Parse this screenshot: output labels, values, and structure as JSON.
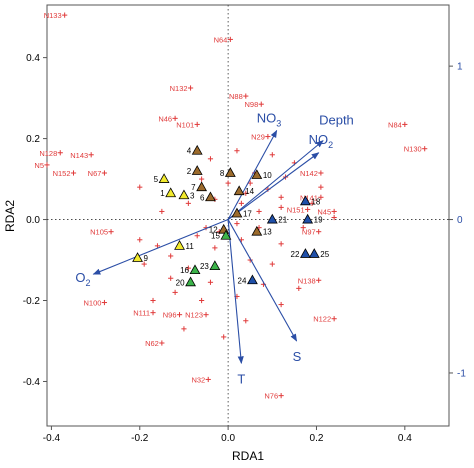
{
  "chart_data": {
    "type": "scatter",
    "xlabel": "RDA1",
    "ylabel": "RDA2",
    "xlim": [
      -0.41,
      0.5
    ],
    "ylim": [
      -0.51,
      0.53
    ],
    "x_ticks": [
      "-0.4",
      "-0.2",
      "0.0",
      "0.2",
      "0.4"
    ],
    "x_tick_values": [
      -0.4,
      -0.2,
      0.0,
      0.2,
      0.4
    ],
    "y_ticks": [
      "0.4",
      "0.2",
      "0.0",
      "-0.2",
      "-0.4"
    ],
    "y_tick_values": [
      0.4,
      0.2,
      0.0,
      -0.2,
      -0.4
    ],
    "right_ticks": [
      "1",
      "0",
      "-1"
    ],
    "right_tick_values": [
      1,
      0,
      -1
    ],
    "right_scale_per_unit": 0.379,
    "colors": {
      "species": "#e03a3a",
      "arrows": "#2b4ea6",
      "yellow": "#f2ea2c",
      "brown": "#9c6b2c",
      "green": "#3cb44a",
      "blue": "#1f4fa8"
    },
    "species": [
      {
        "label": "N133",
        "x": -0.37,
        "y": 0.505
      },
      {
        "label": "N64",
        "x": 0.005,
        "y": 0.445
      },
      {
        "label": "N132",
        "x": -0.085,
        "y": 0.325
      },
      {
        "label": "N88",
        "x": 0.04,
        "y": 0.305
      },
      {
        "label": "N98",
        "x": 0.075,
        "y": 0.285
      },
      {
        "label": "N46",
        "x": -0.12,
        "y": 0.25
      },
      {
        "label": "N101",
        "x": -0.07,
        "y": 0.235
      },
      {
        "label": "N84",
        "x": 0.4,
        "y": 0.235
      },
      {
        "label": "N29",
        "x": 0.09,
        "y": 0.205
      },
      {
        "label": "N130",
        "x": 0.445,
        "y": 0.175
      },
      {
        "label": "N128",
        "x": -0.38,
        "y": 0.165
      },
      {
        "label": "N143",
        "x": -0.31,
        "y": 0.16
      },
      {
        "label": "N5",
        "x": -0.41,
        "y": 0.135
      },
      {
        "label": "N152",
        "x": -0.35,
        "y": 0.115
      },
      {
        "label": "N67",
        "x": -0.28,
        "y": 0.115
      },
      {
        "label": "N142",
        "x": 0.21,
        "y": 0.115
      },
      {
        "label": "N141",
        "x": 0.21,
        "y": 0.055
      },
      {
        "label": "N151",
        "x": 0.18,
        "y": 0.025
      },
      {
        "label": "N45",
        "x": 0.24,
        "y": 0.02
      },
      {
        "label": "N97",
        "x": 0.205,
        "y": -0.03
      },
      {
        "label": "N105",
        "x": -0.265,
        "y": -0.03
      },
      {
        "label": "N138",
        "x": 0.205,
        "y": -0.15
      },
      {
        "label": "N100",
        "x": -0.28,
        "y": -0.205
      },
      {
        "label": "N111",
        "x": -0.17,
        "y": -0.23
      },
      {
        "label": "N96",
        "x": -0.11,
        "y": -0.235
      },
      {
        "label": "N123",
        "x": -0.05,
        "y": -0.235
      },
      {
        "label": "N122",
        "x": 0.24,
        "y": -0.245
      },
      {
        "label": "N62",
        "x": -0.15,
        "y": -0.305
      },
      {
        "label": "N32",
        "x": -0.045,
        "y": -0.395
      },
      {
        "label": "N76",
        "x": 0.12,
        "y": -0.435
      }
    ],
    "unlabeled_species": [
      {
        "x": 0.05,
        "y": 0.09
      },
      {
        "x": 0.09,
        "y": 0.075
      },
      {
        "x": 0.06,
        "y": 0.115
      },
      {
        "x": 0.04,
        "y": 0.065
      },
      {
        "x": 0.12,
        "y": 0.055
      },
      {
        "x": 0.13,
        "y": 0.105
      },
      {
        "x": 0.03,
        "y": 0.04
      },
      {
        "x": 0.07,
        "y": 0.02
      },
      {
        "x": 0.12,
        "y": 0.03
      },
      {
        "x": 0.19,
        "y": 0.04
      },
      {
        "x": 0.17,
        "y": -0.02
      },
      {
        "x": 0.02,
        "y": -0.01
      },
      {
        "x": 0.12,
        "y": -0.06
      },
      {
        "x": 0.24,
        "y": 0.005
      },
      {
        "x": -0.02,
        "y": -0.03
      },
      {
        "x": -0.05,
        "y": -0.02
      },
      {
        "x": -0.2,
        "y": -0.05
      },
      {
        "x": -0.19,
        "y": -0.11
      },
      {
        "x": -0.16,
        "y": -0.065
      },
      {
        "x": -0.13,
        "y": -0.09
      },
      {
        "x": -0.07,
        "y": -0.04
      },
      {
        "x": -0.03,
        "y": -0.07
      },
      {
        "x": 0.03,
        "y": -0.05
      },
      {
        "x": 0.07,
        "y": -0.02
      },
      {
        "x": -0.13,
        "y": -0.145
      },
      {
        "x": -0.09,
        "y": -0.12
      },
      {
        "x": -0.04,
        "y": -0.155
      },
      {
        "x": 0.05,
        "y": -0.1
      },
      {
        "x": 0.1,
        "y": -0.11
      },
      {
        "x": 0.16,
        "y": -0.17
      },
      {
        "x": -0.17,
        "y": -0.2
      },
      {
        "x": -0.06,
        "y": -0.2
      },
      {
        "x": 0.02,
        "y": -0.19
      },
      {
        "x": 0.04,
        "y": -0.25
      },
      {
        "x": -0.1,
        "y": -0.27
      },
      {
        "x": -0.2,
        "y": 0.08
      },
      {
        "x": -0.15,
        "y": 0.02
      },
      {
        "x": -0.09,
        "y": 0.04
      },
      {
        "x": -0.03,
        "y": 0.05
      },
      {
        "x": 0.0,
        "y": 0.09
      },
      {
        "x": -0.04,
        "y": 0.15
      },
      {
        "x": 0.1,
        "y": 0.16
      },
      {
        "x": 0.15,
        "y": 0.14
      },
      {
        "x": 0.02,
        "y": 0.17
      },
      {
        "x": -0.06,
        "y": 0.1
      },
      {
        "x": 0.21,
        "y": 0.08
      },
      {
        "x": 0.08,
        "y": -0.16
      },
      {
        "x": -0.12,
        "y": -0.18
      },
      {
        "x": 0.12,
        "y": -0.21
      },
      {
        "x": -0.01,
        "y": -0.29
      }
    ],
    "sites": [
      {
        "id": "1",
        "x": -0.13,
        "y": 0.065,
        "color": "yellow",
        "label_side": "left"
      },
      {
        "id": "2",
        "x": -0.07,
        "y": 0.12,
        "color": "brown",
        "label_side": "left"
      },
      {
        "id": "3",
        "x": -0.1,
        "y": 0.06,
        "color": "yellow",
        "label_side": "right"
      },
      {
        "id": "4",
        "x": -0.07,
        "y": 0.17,
        "color": "brown",
        "label_side": "left"
      },
      {
        "id": "5",
        "x": -0.145,
        "y": 0.1,
        "color": "yellow",
        "label_side": "left"
      },
      {
        "id": "6",
        "x": -0.04,
        "y": 0.055,
        "color": "brown",
        "label_side": "left"
      },
      {
        "id": "7",
        "x": -0.06,
        "y": 0.08,
        "color": "brown",
        "label_side": "left"
      },
      {
        "id": "8",
        "x": 0.005,
        "y": 0.115,
        "color": "brown",
        "label_side": "left"
      },
      {
        "id": "9",
        "x": -0.205,
        "y": -0.095,
        "color": "yellow",
        "label_side": "right"
      },
      {
        "id": "10",
        "x": 0.065,
        "y": 0.11,
        "color": "brown",
        "label_side": "right"
      },
      {
        "id": "11",
        "x": -0.11,
        "y": -0.065,
        "color": "yellow",
        "label_side": "right"
      },
      {
        "id": "12",
        "x": -0.01,
        "y": -0.025,
        "color": "brown",
        "label_side": "left"
      },
      {
        "id": "13",
        "x": 0.065,
        "y": -0.03,
        "color": "brown",
        "label_side": "right"
      },
      {
        "id": "14",
        "x": 0.025,
        "y": 0.07,
        "color": "brown",
        "label_side": "right"
      },
      {
        "id": "15",
        "x": -0.005,
        "y": -0.04,
        "color": "green",
        "label_side": "left"
      },
      {
        "id": "16",
        "x": -0.075,
        "y": -0.125,
        "color": "green",
        "label_side": "left"
      },
      {
        "id": "17",
        "x": 0.02,
        "y": 0.015,
        "color": "brown",
        "label_side": "right"
      },
      {
        "id": "18",
        "x": 0.175,
        "y": 0.045,
        "color": "blue",
        "label_side": "right"
      },
      {
        "id": "19",
        "x": 0.18,
        "y": 0.0,
        "color": "blue",
        "label_side": "right"
      },
      {
        "id": "20",
        "x": -0.085,
        "y": -0.155,
        "color": "green",
        "label_side": "left"
      },
      {
        "id": "21",
        "x": 0.1,
        "y": 0.0,
        "color": "blue",
        "label_side": "right"
      },
      {
        "id": "22",
        "x": 0.175,
        "y": -0.085,
        "color": "blue",
        "label_side": "left"
      },
      {
        "id": "23",
        "x": -0.03,
        "y": -0.115,
        "color": "green",
        "label_side": "left"
      },
      {
        "id": "24",
        "x": 0.055,
        "y": -0.15,
        "color": "blue",
        "label_side": "left"
      },
      {
        "id": "25",
        "x": 0.195,
        "y": -0.085,
        "color": "blue",
        "label_side": "right"
      }
    ],
    "env_vectors": [
      {
        "label": "Depth",
        "x": 0.215,
        "y": 0.195,
        "label_dx": -4,
        "label_dy": -16
      },
      {
        "label": "NO3",
        "label_main": "NO",
        "label_sub": "3",
        "x": 0.11,
        "y": 0.22,
        "label_dx": -20,
        "label_dy": -8
      },
      {
        "label": "NO2",
        "label_main": "NO",
        "label_sub": "2",
        "x": 0.205,
        "y": 0.165,
        "label_dx": -10,
        "label_dy": -9
      },
      {
        "label": "O2",
        "label_main": "O",
        "label_sub": "2",
        "x": -0.305,
        "y": -0.135,
        "label_dx": -18,
        "label_dy": 8
      },
      {
        "label": "T",
        "x": 0.03,
        "y": -0.355,
        "label_dx": -4,
        "label_dy": 20
      },
      {
        "label": "S",
        "x": 0.155,
        "y": -0.3,
        "label_dx": -4,
        "label_dy": 20
      }
    ]
  }
}
